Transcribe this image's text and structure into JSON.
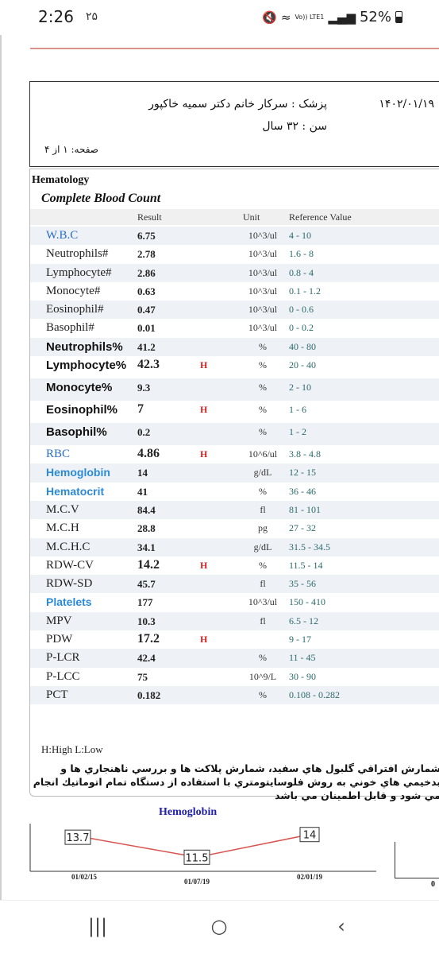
{
  "status_bar": {
    "time": "2:26",
    "time_sub": "۲۵",
    "volte_label": "Vo)) LTE1",
    "battery": "52%"
  },
  "header": {
    "date": "۱۴۰۲/۰۱/۱۹",
    "doctor": "پزشک :  سرکار خانم دکتر سمیه خاکپور",
    "age": "سن :  ۳۲ سال",
    "page": "صفحه:  ۱  از  ۴"
  },
  "report": {
    "section": "Hematology",
    "panel": "Complete Blood Count",
    "columns": {
      "result": "Result",
      "unit": "Unit",
      "reference": "Reference Value"
    },
    "rows": [
      {
        "name": "W.B.C",
        "result": "6.75",
        "flag": "",
        "unit": "10^3/ul",
        "ref": "4 - 10",
        "style": "blue",
        "shade": true
      },
      {
        "name": "Neutrophils#",
        "result": "2.78",
        "flag": "",
        "unit": "10^3/ul",
        "ref": "1.6 - 8",
        "style": "",
        "shade": false
      },
      {
        "name": "Lymphocyte#",
        "result": "2.86",
        "flag": "",
        "unit": "10^3/ul",
        "ref": "0.8 - 4",
        "style": "",
        "shade": true
      },
      {
        "name": "Monocyte#",
        "result": "0.63",
        "flag": "",
        "unit": "10^3/ul",
        "ref": "0.1 - 1.2",
        "style": "",
        "shade": false
      },
      {
        "name": "Eosinophil#",
        "result": "0.47",
        "flag": "",
        "unit": "10^3/ul",
        "ref": "0 - 0.6",
        "style": "",
        "shade": true
      },
      {
        "name": "Basophil#",
        "result": "0.01",
        "flag": "",
        "unit": "10^3/ul",
        "ref": "0 - 0.2",
        "style": "",
        "shade": false
      },
      {
        "name": "Neutrophils%",
        "result": "41.2",
        "flag": "",
        "unit": "%",
        "ref": "40 - 80",
        "style": "bold",
        "shade": true
      },
      {
        "name": "Lymphocyte%",
        "result": "42.3",
        "flag": "H",
        "unit": "%",
        "ref": "20 - 40",
        "style": "bold",
        "shade": false,
        "tall": true,
        "big": true
      },
      {
        "name": "Monocyte%",
        "result": "9.3",
        "flag": "",
        "unit": "%",
        "ref": "2 - 10",
        "style": "bold",
        "shade": true,
        "tall": true
      },
      {
        "name": "Eosinophil%",
        "result": "7",
        "flag": "H",
        "unit": "%",
        "ref": "1 - 6",
        "style": "bold",
        "shade": false,
        "tall": true,
        "big": true
      },
      {
        "name": "Basophil%",
        "result": "0.2",
        "flag": "",
        "unit": "%",
        "ref": "1 - 2",
        "style": "bold",
        "shade": true,
        "tall": true
      },
      {
        "name": "RBC",
        "result": "4.86",
        "flag": "H",
        "unit": "10^6/ul",
        "ref": "3.8 - 4.8",
        "style": "blue",
        "shade": false,
        "big": true
      },
      {
        "name": "Hemoglobin",
        "result": "14",
        "flag": "",
        "unit": "g/dL",
        "ref": "12 - 15",
        "style": "bluebold",
        "shade": true
      },
      {
        "name": "Hematocrit",
        "result": "41",
        "flag": "",
        "unit": "%",
        "ref": "36 - 46",
        "style": "bluebold",
        "shade": false
      },
      {
        "name": "M.C.V",
        "result": "84.4",
        "flag": "",
        "unit": "fl",
        "ref": "81 - 101",
        "style": "",
        "shade": true
      },
      {
        "name": "M.C.H",
        "result": "28.8",
        "flag": "",
        "unit": "pg",
        "ref": "27 - 32",
        "style": "",
        "shade": false
      },
      {
        "name": "M.C.H.C",
        "result": "34.1",
        "flag": "",
        "unit": "g/dL",
        "ref": "31.5 - 34.5",
        "style": "",
        "shade": true
      },
      {
        "name": "RDW-CV",
        "result": "14.2",
        "flag": "H",
        "unit": "%",
        "ref": "11.5 - 14",
        "style": "",
        "shade": false,
        "big": true
      },
      {
        "name": "RDW-SD",
        "result": "45.7",
        "flag": "",
        "unit": "fl",
        "ref": "35 - 56",
        "style": "",
        "shade": true
      },
      {
        "name": "Platelets",
        "result": "177",
        "flag": "",
        "unit": "10^3/ul",
        "ref": "150 - 410",
        "style": "bluebold",
        "shade": false
      },
      {
        "name": "MPV",
        "result": "10.3",
        "flag": "",
        "unit": "fl",
        "ref": "6.5 - 12",
        "style": "",
        "shade": true
      },
      {
        "name": "PDW",
        "result": "17.2",
        "flag": "H",
        "unit": "",
        "ref": "9 - 17",
        "style": "",
        "shade": false,
        "big": true
      },
      {
        "name": "P-LCR",
        "result": "42.4",
        "flag": "",
        "unit": "%",
        "ref": "11 - 45",
        "style": "",
        "shade": true
      },
      {
        "name": "P-LCC",
        "result": "75",
        "flag": "",
        "unit": "10^9/L",
        "ref": "30 - 90",
        "style": "",
        "shade": false
      },
      {
        "name": "PCT",
        "result": "0.182",
        "flag": "",
        "unit": "%",
        "ref": "0.108 - 0.282",
        "style": "",
        "shade": true
      }
    ],
    "legend": "H:High L:Low",
    "note": "شمارش افتراقي گلبول هاي سفيد، شمارش پلاكت ها و بررسي ناهنجاري ها و بدخيمي هاي خوني به روش فلوسايتومتري با استفاده از دستگاه تمام اتوماتيك انجام مي شود و قابل اطمينان مي باشد"
  },
  "chart_data": {
    "type": "line",
    "title": "Hemoglobin",
    "x": [
      "01/02/15",
      "01/07/19",
      "02/01/19"
    ],
    "values": [
      13.7,
      11.5,
      14
    ],
    "color": "#d9534f"
  },
  "colors": {
    "accent_blue": "#2b6cc4",
    "flag_red": "#d42020",
    "ref_teal": "#2c6a6a"
  },
  "nav": {
    "recents": "|||",
    "home": "○",
    "back": "‹"
  }
}
